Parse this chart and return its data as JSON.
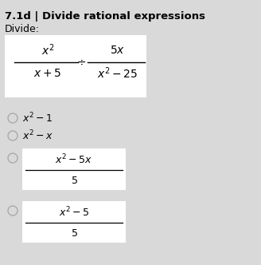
{
  "title": "7.1d | Divide rational expressions",
  "subtitle": "Divide:",
  "bg_color": "#d9d9d9",
  "white_box_color": "#ffffff",
  "title_fontsize": 9.5,
  "subtitle_fontsize": 9,
  "math_fontsize": 10,
  "option_fontsize": 9,
  "figsize": [
    3.28,
    3.32
  ],
  "dpi": 100
}
